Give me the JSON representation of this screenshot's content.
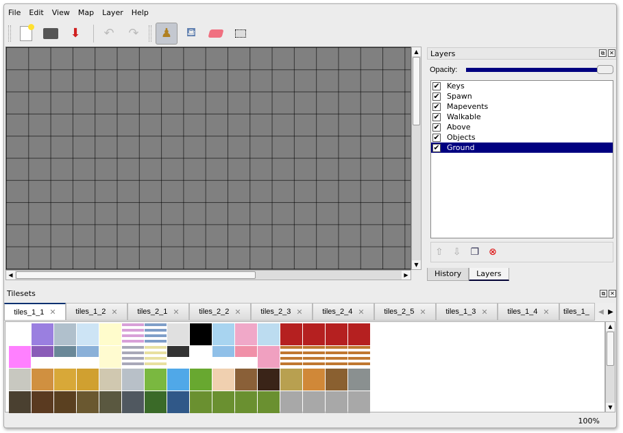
{
  "menu": [
    "File",
    "Edit",
    "View",
    "Map",
    "Layer",
    "Help"
  ],
  "toolbar": {
    "icons": [
      "new-icon",
      "open-icon",
      "save-icon",
      "undo-icon",
      "redo-icon",
      "stamp-brush-icon",
      "bucket-fill-icon",
      "eraser-icon",
      "rect-select-icon"
    ],
    "active": "stamp-brush-icon"
  },
  "layers_panel": {
    "title": "Layers",
    "opacity_label": "Opacity:",
    "opacity": 1.0,
    "layers": [
      {
        "name": "Keys",
        "visible": true
      },
      {
        "name": "Spawn",
        "visible": true
      },
      {
        "name": "Mapevents",
        "visible": true
      },
      {
        "name": "Walkable",
        "visible": true
      },
      {
        "name": "Above",
        "visible": true
      },
      {
        "name": "Objects",
        "visible": true
      },
      {
        "name": "Ground",
        "visible": true,
        "selected": true
      }
    ],
    "tabs": [
      "History",
      "Layers"
    ],
    "active_tab": "Layers"
  },
  "tilesets": {
    "title": "Tilesets",
    "tabs": [
      "tiles_1_1",
      "tiles_1_2",
      "tiles_2_1",
      "tiles_2_2",
      "tiles_2_3",
      "tiles_2_4",
      "tiles_2_5",
      "tiles_1_3",
      "tiles_1_4",
      "tiles_1_"
    ],
    "active": "tiles_1_1"
  },
  "status": {
    "zoom": "100%"
  },
  "check": "✔"
}
